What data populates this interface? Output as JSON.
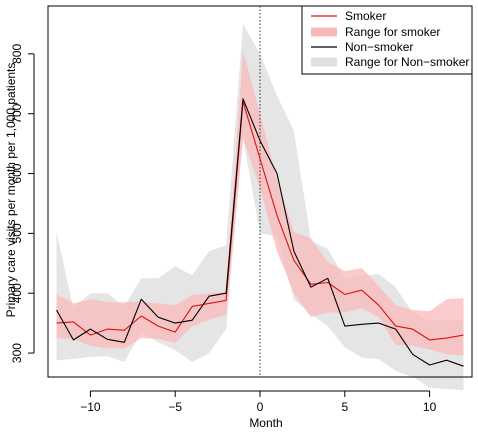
{
  "chart_data": {
    "type": "line",
    "xlabel": "Month",
    "ylabel": "Primary care visits per month per 1,000 patients",
    "xlim": [
      -12.5,
      12.5
    ],
    "ylim": [
      260,
      880
    ],
    "x_ticks": [
      -10,
      -5,
      0,
      5,
      10
    ],
    "x_tick_labels": [
      "−10",
      "−5",
      "0",
      "5",
      "10"
    ],
    "y_ticks": [
      300,
      400,
      500,
      600,
      700,
      800
    ],
    "y_tick_labels": [
      "300",
      "400",
      "500",
      "600",
      "700",
      "800"
    ],
    "vertical_reference_line": {
      "x": 0,
      "style": "dotted"
    },
    "legend": {
      "placement": "top-right",
      "entries": [
        "Smoker",
        "Range for smoker",
        "Non−smoker",
        "Range for Non−smoker"
      ]
    },
    "x": [
      -12,
      -11,
      -10,
      -9,
      -8,
      -7,
      -6,
      -5,
      -4,
      -3,
      -2,
      -1,
      0,
      1,
      2,
      3,
      4,
      5,
      6,
      7,
      8,
      9,
      10,
      11,
      12
    ],
    "series": [
      {
        "name": "Smoker",
        "kind": "line",
        "color": "#dd1111",
        "values": [
          350,
          352,
          330,
          340,
          338,
          362,
          345,
          335,
          378,
          383,
          388,
          720,
          625,
          530,
          455,
          415,
          418,
          398,
          405,
          380,
          345,
          340,
          322,
          325,
          330
        ]
      },
      {
        "name": "Non−smoker",
        "kind": "line",
        "color": "#000000",
        "values": [
          372,
          322,
          340,
          323,
          318,
          390,
          360,
          350,
          355,
          395,
          400,
          725,
          655,
          600,
          470,
          410,
          425,
          345,
          348,
          350,
          340,
          298,
          280,
          288,
          278
        ]
      },
      {
        "name": "Range for smoker",
        "kind": "band",
        "color": "#f9b9b9",
        "upper": [
          398,
          383,
          390,
          385,
          385,
          386,
          383,
          380,
          397,
          400,
          402,
          805,
          700,
          590,
          502,
          492,
          452,
          437,
          442,
          412,
          380,
          372,
          370,
          390,
          392
        ],
        "lower": [
          325,
          323,
          312,
          308,
          308,
          325,
          324,
          317,
          345,
          356,
          364,
          660,
          575,
          470,
          400,
          360,
          368,
          368,
          375,
          360,
          314,
          312,
          306,
          298,
          296
        ]
      },
      {
        "name": "Range for Non−smoker",
        "kind": "band",
        "color": "#e0e0e0",
        "upper": [
          502,
          375,
          400,
          400,
          378,
          425,
          425,
          445,
          430,
          470,
          480,
          850,
          800,
          730,
          672,
          488,
          474,
          425,
          430,
          432,
          410,
          368,
          354,
          355,
          355
        ],
        "lower": [
          288,
          290,
          294,
          295,
          285,
          335,
          318,
          305,
          285,
          300,
          340,
          660,
          500,
          495,
          390,
          365,
          345,
          310,
          292,
          290,
          270,
          260,
          242,
          240,
          238
        ]
      }
    ]
  }
}
